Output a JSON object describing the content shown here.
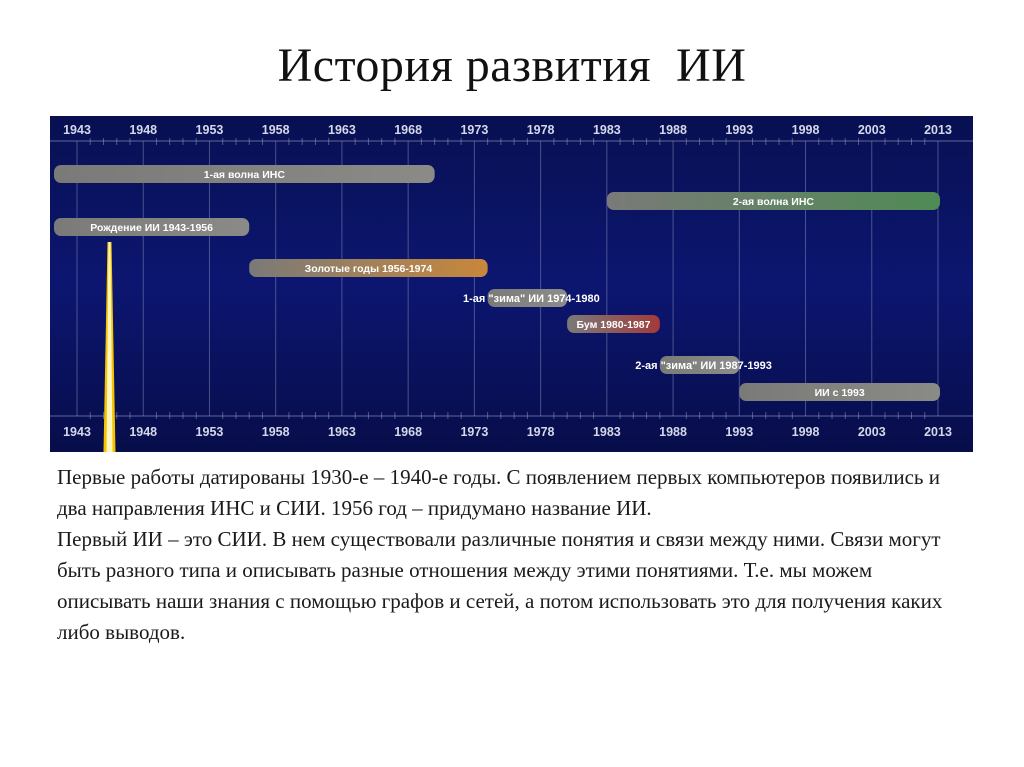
{
  "title": "История развития  ИИ",
  "timeline": {
    "years": [
      1943,
      1948,
      1953,
      1958,
      1963,
      1968,
      1973,
      1978,
      1983,
      1988,
      1993,
      1998,
      2003,
      2013
    ],
    "bars": [
      {
        "label": "1-ая волна ИНС",
        "start": 1943,
        "end": 1970,
        "row": 1,
        "color": "#8a8a86"
      },
      {
        "label": "2-ая волна ИНС",
        "start": 1983,
        "end": 2013,
        "row": 2,
        "color": "#4f8a55"
      },
      {
        "label": "Рождение ИИ 1943-1956",
        "start": 1943,
        "end": 1956,
        "row": 3,
        "color": "#8a8a86"
      },
      {
        "label": "Золотые годы 1956-1974",
        "start": 1956,
        "end": 1974,
        "row": 4,
        "color": "#c9873a"
      },
      {
        "label": "1-ая \"зима\" ИИ 1974-1980",
        "start": 1974,
        "end": 1980,
        "row": 5,
        "color": "#8c8c8c",
        "label_outside": true
      },
      {
        "label": "Бум 1980-1987",
        "start": 1980,
        "end": 1987,
        "row": 6,
        "color": "#a33a3a"
      },
      {
        "label": "2-ая \"зима\" ИИ 1987-1993",
        "start": 1987,
        "end": 1993,
        "row": 7,
        "color": "#8c8c8c",
        "label_outside": true
      },
      {
        "label": "ИИ с 1993",
        "start": 1993,
        "end": 2013,
        "row": 8,
        "color": "#8a8a86"
      }
    ],
    "marker_year": 1945,
    "colors": {
      "background": "#0a1160",
      "grid": "#9aa0c8",
      "marker": "#f5c400"
    }
  },
  "body": {
    "paragraph1": "Первые работы датированы 1930-е – 1940-е годы.  С появлением первых компьютеров  появились и два направления ИНС и СИИ.  1956 год – придумано название ИИ.",
    "paragraph2": "Первый ИИ – это СИИ. В нем существовали различные понятия и связи между ними. Связи могут быть разного типа  и описывать разные отношения между этими понятиями. Т.е. мы можем описывать наши знания с помощью графов и сетей, а потом использовать это для получения каких либо выводов."
  }
}
